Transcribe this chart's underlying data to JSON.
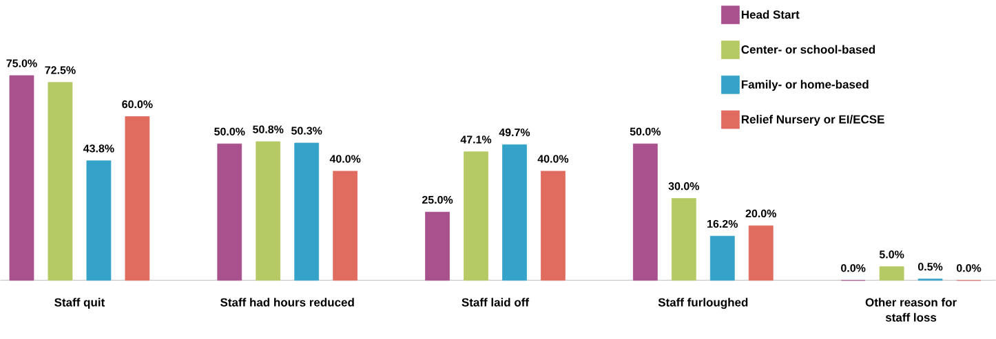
{
  "chart_data": {
    "type": "bar",
    "categories": [
      "Staff quit",
      "Staff had hours reduced",
      "Staff laid off",
      "Staff furloughed",
      "Other reason for staff loss"
    ],
    "series": [
      {
        "name": "Head Start",
        "color": "#a8518d",
        "values": [
          75.0,
          50.0,
          25.0,
          50.0,
          0.0
        ],
        "value_labels": [
          "75.0%",
          "50.0%",
          "25.0%",
          "50.0%",
          "0.0%"
        ]
      },
      {
        "name": "Center- or school-based",
        "color": "#b5c965",
        "values": [
          72.5,
          50.8,
          47.1,
          30.0,
          5.0
        ],
        "value_labels": [
          "72.5%",
          "50.8%",
          "47.1%",
          "30.0%",
          "5.0%"
        ]
      },
      {
        "name": "Family- or home-based",
        "color": "#35a3c9",
        "values": [
          43.8,
          50.3,
          49.7,
          16.2,
          0.5
        ],
        "value_labels": [
          "43.8%",
          "50.3%",
          "49.7%",
          "16.2%",
          "0.5%"
        ]
      },
      {
        "name": "Relief Nursery or EI/ECSE",
        "color": "#e06c60",
        "values": [
          60.0,
          40.0,
          40.0,
          20.0,
          0.0
        ],
        "value_labels": [
          "60.0%",
          "40.0%",
          "40.0%",
          "20.0%",
          "0.0%"
        ]
      }
    ],
    "legend": "top right"
  }
}
